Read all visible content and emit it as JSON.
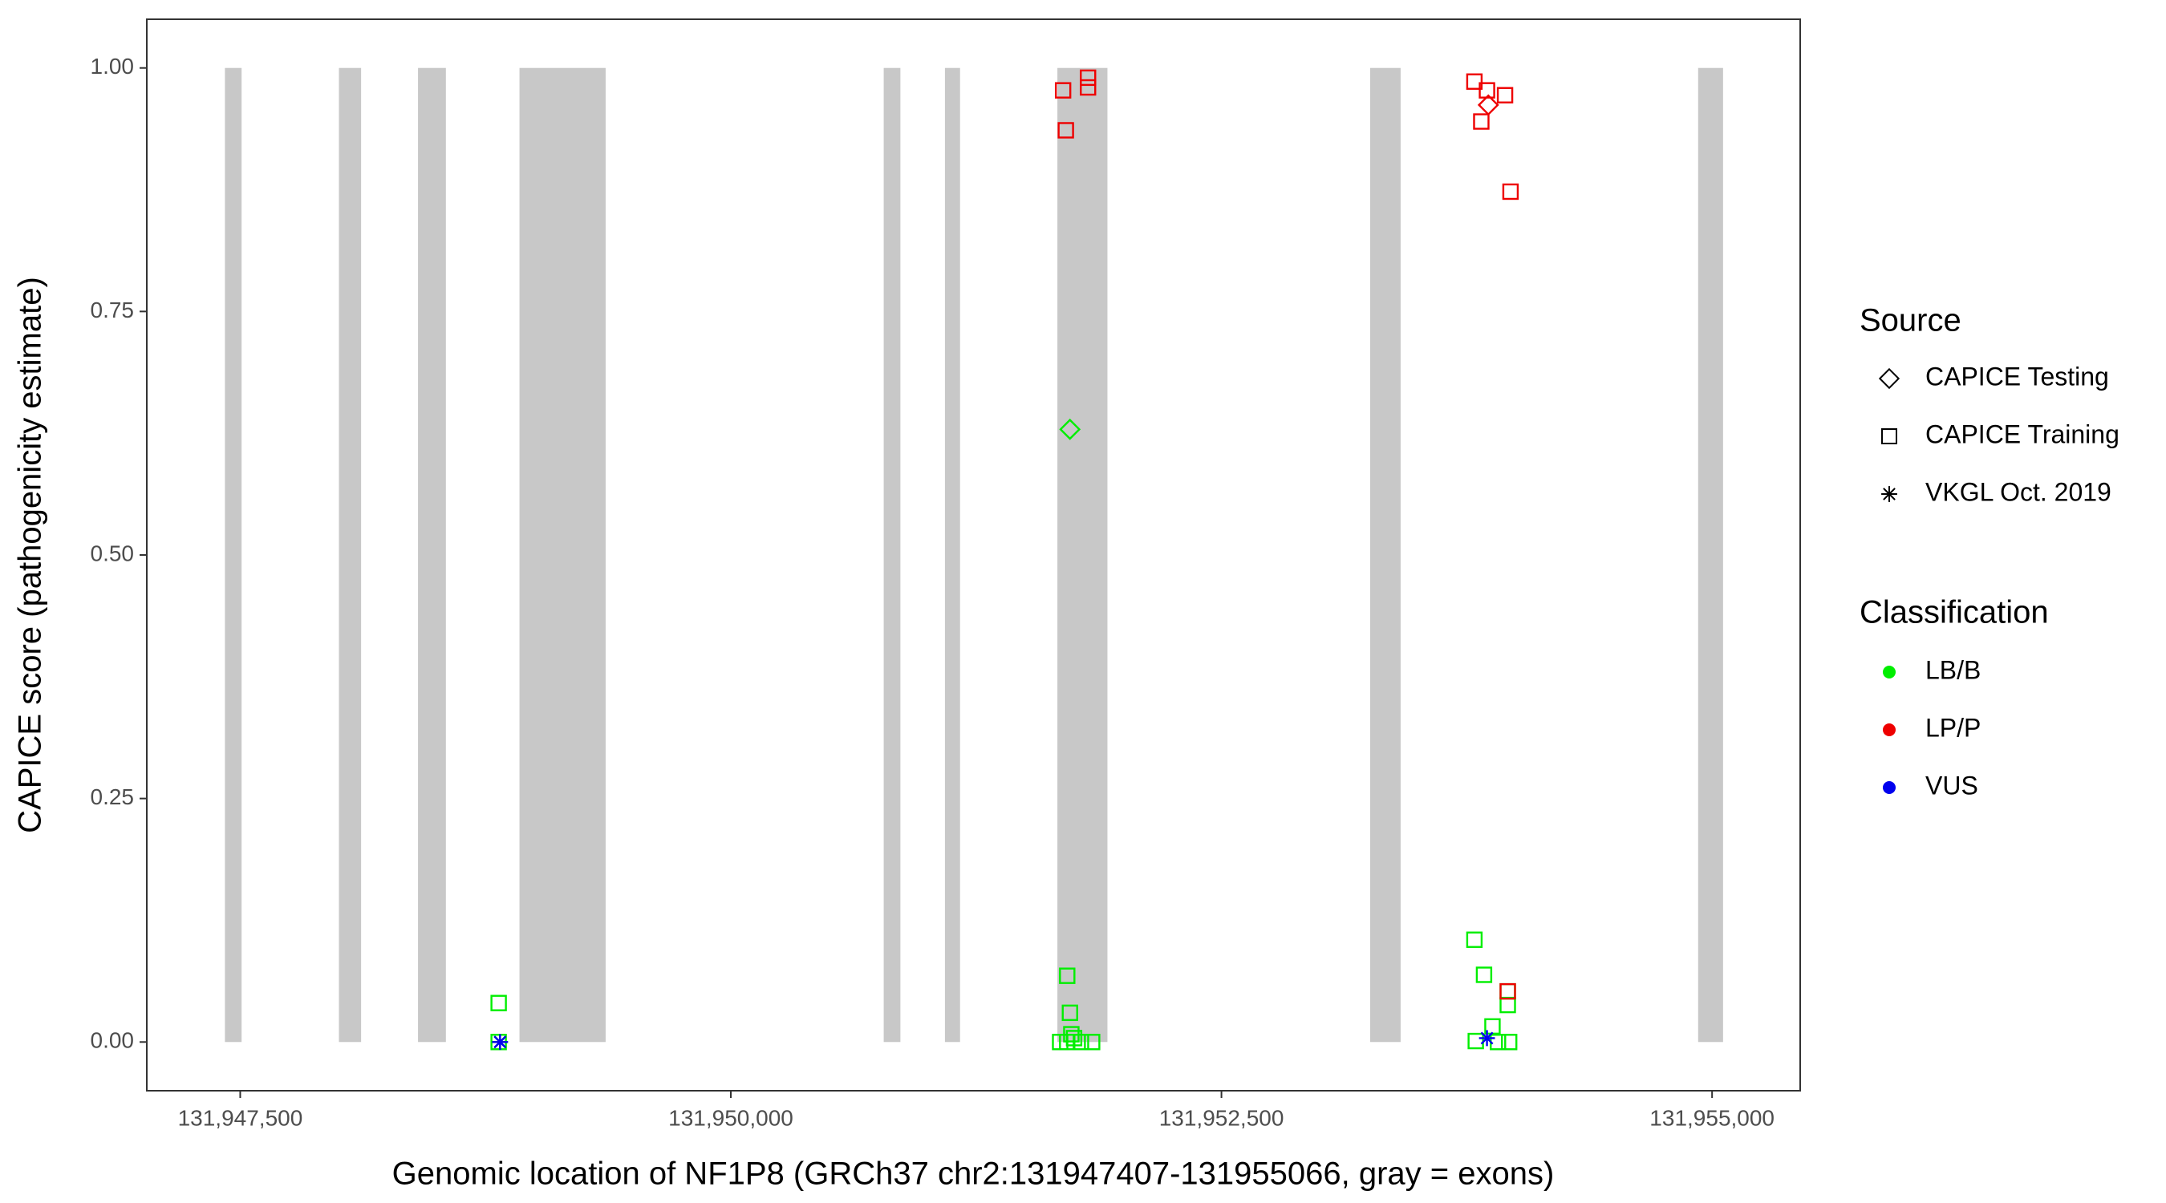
{
  "chart_data": {
    "type": "scatter",
    "x_label": "Genomic location of NF1P8 (GRCh37 chr2:131947407-131955066, gray = exons)",
    "y_label": "CAPICE score (pathogenicity estimate)",
    "xlim": [
      131947024,
      131955449
    ],
    "ylim": [
      -0.05,
      1.05
    ],
    "xticks": [
      {
        "value": 131947500,
        "label": "131,947,500"
      },
      {
        "value": 131950000,
        "label": "131,950,000"
      },
      {
        "value": 131952500,
        "label": "131,952,500"
      },
      {
        "value": 131955000,
        "label": "131,955,000"
      }
    ],
    "yticks": [
      {
        "value": 0,
        "label": "0.00"
      },
      {
        "value": 0.25,
        "label": "0.25"
      },
      {
        "value": 0.5,
        "label": "0.50"
      },
      {
        "value": 0.75,
        "label": "0.75"
      },
      {
        "value": 1,
        "label": "1.00"
      }
    ],
    "grid": false,
    "exons": {
      "color": "#c8c8c8",
      "starts": [
        131947422,
        131948003,
        131948406,
        131948923,
        131950779,
        131951091,
        131951664,
        131953258,
        131954929
      ],
      "ends": [
        131947507,
        131948116,
        131948548,
        131949362,
        131950864,
        131951168,
        131951919,
        131953413,
        131955056
      ]
    },
    "source_title": "Source",
    "classification_title": "Classification",
    "classifications": [
      {
        "name": "LB/B",
        "color": "#00ee00"
      },
      {
        "name": "LP/P",
        "color": "#ee0000"
      },
      {
        "name": "VUS",
        "color": "#0000ee"
      }
    ],
    "sources": [
      {
        "name": "CAPICE Testing",
        "shape": "diamond",
        "x": [
          [
            131951728
          ],
          [
            131953860
          ],
          []
        ],
        "y": [
          [
            0.629
          ],
          [
            0.962
          ],
          []
        ]
      },
      {
        "name": "CAPICE Training",
        "shape": "square",
        "x": [
          [
            131948817,
            131948817,
            131951678,
            131951714,
            131951749,
            131951784,
            131951841,
            131951714,
            131951728,
            131951735,
            131953789,
            131953838,
            131953881,
            131953796,
            131953909,
            131953966,
            131953959,
            131953959
          ],
          [
            131951693,
            131951707,
            131951820,
            131951820,
            131953789,
            131953853,
            131953824,
            131953945,
            131953973,
            131953959
          ],
          []
        ],
        "y": [
          [
            0.04,
            0,
            0,
            0,
            0.004,
            0,
            0,
            0.068,
            0.03,
            0.008,
            0.105,
            0.069,
            0.016,
            0.001,
            0,
            0,
            0.038,
            0.052
          ],
          [
            0.977,
            0.936,
            0.99,
            0.98,
            0.986,
            0.977,
            0.945,
            0.972,
            0.873,
            0.052
          ],
          []
        ]
      },
      {
        "name": "VKGL Oct. 2019",
        "shape": "asterisk",
        "x": [
          [
            131948824
          ],
          [],
          [
            131948824,
            131953853
          ]
        ],
        "y": [
          [
            0
          ],
          [],
          [
            0,
            0.004
          ]
        ]
      }
    ]
  }
}
